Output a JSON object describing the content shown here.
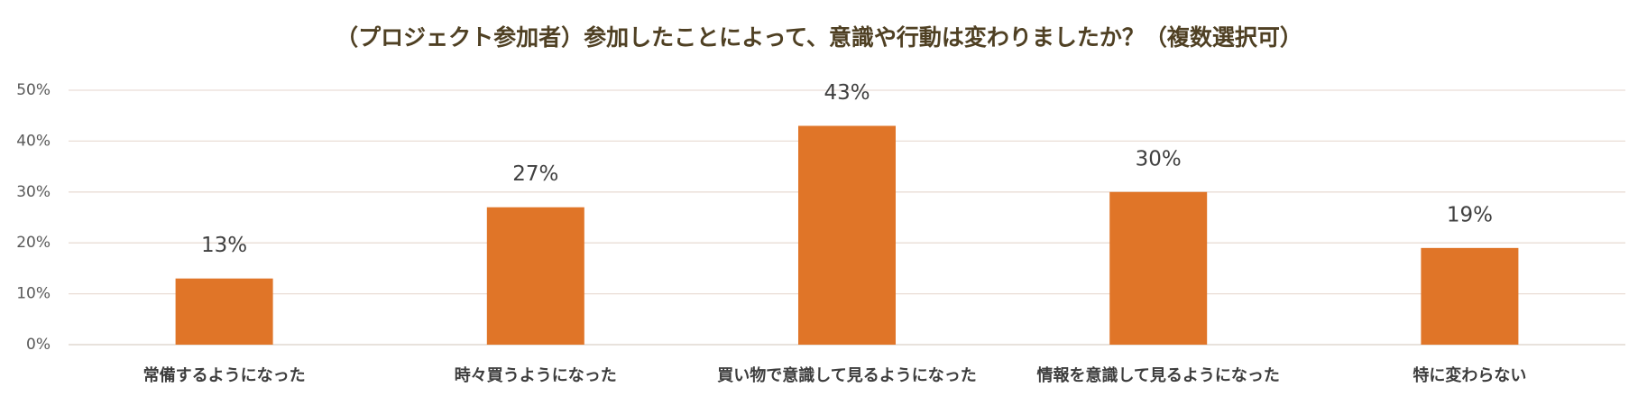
{
  "chart_data": {
    "type": "bar",
    "title": "（プロジェクト参加者）参加したことによって、意識や行動は変わりましたか？（複数選択可）",
    "categories": [
      "常備するようになった",
      "時々買うようになった",
      "買い物で意識して見るようになった",
      "情報を意識して見るようになった",
      "特に変わらない"
    ],
    "values": [
      13,
      27,
      43,
      30,
      19
    ],
    "value_labels": [
      "13%",
      "27%",
      "43%",
      "30%",
      "19%"
    ],
    "color": "#e07528",
    "ylim": [
      0,
      50
    ],
    "yticks": [
      {
        "value": 0,
        "label": "0%"
      },
      {
        "value": 10,
        "label": "10%"
      },
      {
        "value": 20,
        "label": "20%"
      },
      {
        "value": 30,
        "label": "30%"
      },
      {
        "value": 40,
        "label": "40%"
      },
      {
        "value": 50,
        "label": "50%"
      }
    ],
    "grid": true
  }
}
